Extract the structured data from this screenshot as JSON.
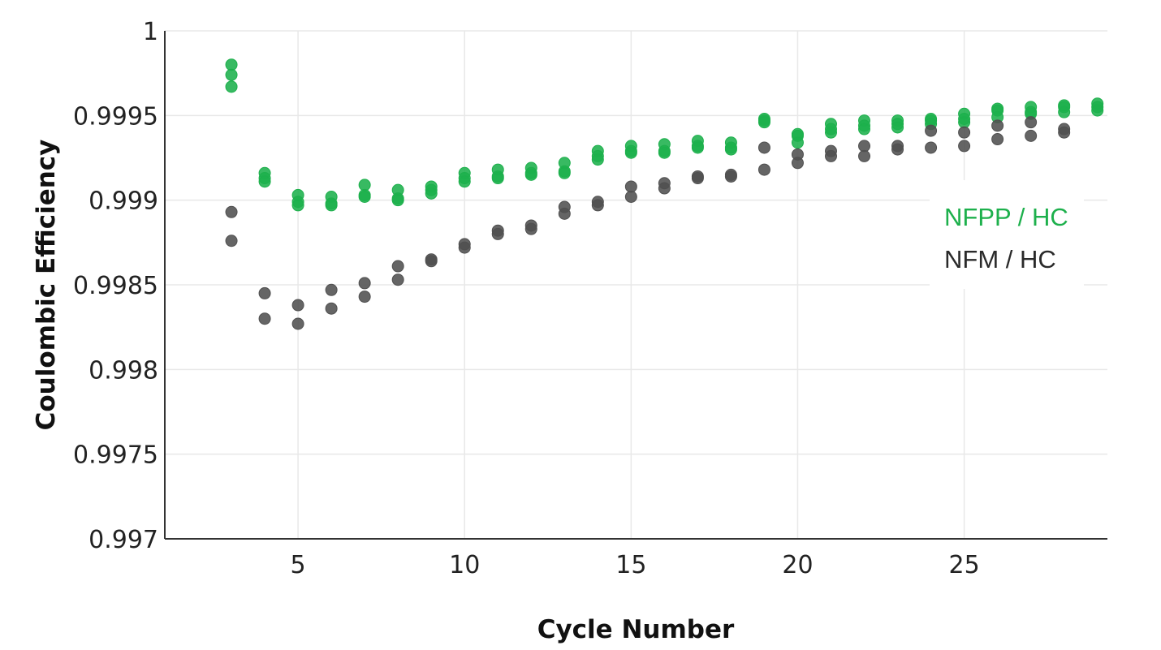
{
  "chart_data": {
    "type": "scatter",
    "title": "",
    "xlabel": "Cycle Number",
    "ylabel": "Coulombic Efficiency",
    "xlim": [
      1,
      29.3
    ],
    "ylim": [
      0.997,
      1
    ],
    "x_ticks": [
      5,
      10,
      15,
      20,
      25
    ],
    "x_tick_labels": [
      "5",
      "10",
      "15",
      "20",
      "25"
    ],
    "y_ticks": [
      0.997,
      0.9975,
      0.998,
      0.9985,
      0.999,
      0.9995,
      1
    ],
    "y_tick_labels": [
      "0.997",
      "0.9975",
      "0.998",
      "0.9985",
      "0.999",
      "0.9995",
      "1"
    ],
    "grid": true,
    "legend_position": "right",
    "series": [
      {
        "name": "NFPP / HC",
        "color": "#1db04c",
        "points": [
          [
            3,
            0.9998
          ],
          [
            3,
            0.99974
          ],
          [
            3,
            0.99967
          ],
          [
            4,
            0.99916
          ],
          [
            4,
            0.99913
          ],
          [
            4,
            0.99911
          ],
          [
            5,
            0.99903
          ],
          [
            5,
            0.99899
          ],
          [
            5,
            0.99897
          ],
          [
            6,
            0.99902
          ],
          [
            6,
            0.99898
          ],
          [
            6,
            0.99897
          ],
          [
            7,
            0.99909
          ],
          [
            7,
            0.99903
          ],
          [
            7,
            0.99902
          ],
          [
            8,
            0.99906
          ],
          [
            8,
            0.99901
          ],
          [
            8,
            0.999
          ],
          [
            9,
            0.99908
          ],
          [
            9,
            0.99906
          ],
          [
            9,
            0.99904
          ],
          [
            10,
            0.99916
          ],
          [
            10,
            0.99913
          ],
          [
            10,
            0.99911
          ],
          [
            11,
            0.99918
          ],
          [
            11,
            0.99914
          ],
          [
            11,
            0.99913
          ],
          [
            12,
            0.99919
          ],
          [
            12,
            0.99916
          ],
          [
            12,
            0.99915
          ],
          [
            13,
            0.99922
          ],
          [
            13,
            0.99917
          ],
          [
            13,
            0.99916
          ],
          [
            14,
            0.99929
          ],
          [
            14,
            0.99926
          ],
          [
            14,
            0.99924
          ],
          [
            15,
            0.99932
          ],
          [
            15,
            0.99929
          ],
          [
            15,
            0.99928
          ],
          [
            16,
            0.99933
          ],
          [
            16,
            0.99929
          ],
          [
            16,
            0.99928
          ],
          [
            17,
            0.99935
          ],
          [
            17,
            0.99932
          ],
          [
            17,
            0.99931
          ],
          [
            18,
            0.99934
          ],
          [
            18,
            0.99931
          ],
          [
            18,
            0.9993
          ],
          [
            19,
            0.99948
          ],
          [
            19,
            0.99947
          ],
          [
            19,
            0.99946
          ],
          [
            20,
            0.99939
          ],
          [
            20,
            0.99938
          ],
          [
            20,
            0.99934
          ],
          [
            21,
            0.99945
          ],
          [
            21,
            0.99942
          ],
          [
            21,
            0.9994
          ],
          [
            22,
            0.99947
          ],
          [
            22,
            0.99944
          ],
          [
            22,
            0.99942
          ],
          [
            23,
            0.99947
          ],
          [
            23,
            0.99945
          ],
          [
            23,
            0.99943
          ],
          [
            24,
            0.99948
          ],
          [
            24,
            0.99947
          ],
          [
            24,
            0.99945
          ],
          [
            25,
            0.99951
          ],
          [
            25,
            0.99948
          ],
          [
            25,
            0.99946
          ],
          [
            26,
            0.99954
          ],
          [
            26,
            0.99953
          ],
          [
            26,
            0.99949
          ],
          [
            27,
            0.99955
          ],
          [
            27,
            0.99952
          ],
          [
            27,
            0.99951
          ],
          [
            28,
            0.99956
          ],
          [
            28,
            0.99955
          ],
          [
            28,
            0.99952
          ],
          [
            29,
            0.99957
          ],
          [
            29,
            0.99955
          ],
          [
            29,
            0.99953
          ]
        ]
      },
      {
        "name": "NFM / HC",
        "color": "#505050",
        "points": [
          [
            3,
            0.99893
          ],
          [
            3,
            0.99876
          ],
          [
            4,
            0.99845
          ],
          [
            4,
            0.9983
          ],
          [
            5,
            0.99838
          ],
          [
            5,
            0.99827
          ],
          [
            6,
            0.99847
          ],
          [
            6,
            0.99836
          ],
          [
            7,
            0.99851
          ],
          [
            7,
            0.99843
          ],
          [
            8,
            0.99861
          ],
          [
            8,
            0.99853
          ],
          [
            9,
            0.99865
          ],
          [
            9,
            0.99864
          ],
          [
            10,
            0.99874
          ],
          [
            10,
            0.99872
          ],
          [
            11,
            0.99882
          ],
          [
            11,
            0.9988
          ],
          [
            12,
            0.99885
          ],
          [
            12,
            0.99883
          ],
          [
            13,
            0.99896
          ],
          [
            13,
            0.99892
          ],
          [
            14,
            0.99899
          ],
          [
            14,
            0.99897
          ],
          [
            15,
            0.99908
          ],
          [
            15,
            0.99902
          ],
          [
            16,
            0.9991
          ],
          [
            16,
            0.99907
          ],
          [
            17,
            0.99914
          ],
          [
            17,
            0.99913
          ],
          [
            18,
            0.99915
          ],
          [
            18,
            0.99914
          ],
          [
            19,
            0.99931
          ],
          [
            19,
            0.99918
          ],
          [
            20,
            0.99927
          ],
          [
            20,
            0.99922
          ],
          [
            21,
            0.99929
          ],
          [
            21,
            0.99926
          ],
          [
            22,
            0.99932
          ],
          [
            22,
            0.99926
          ],
          [
            23,
            0.99932
          ],
          [
            23,
            0.9993
          ],
          [
            24,
            0.99941
          ],
          [
            24,
            0.99931
          ],
          [
            25,
            0.9994
          ],
          [
            25,
            0.99932
          ],
          [
            26,
            0.99944
          ],
          [
            26,
            0.99936
          ],
          [
            27,
            0.99946
          ],
          [
            27,
            0.99938
          ],
          [
            28,
            0.99942
          ],
          [
            28,
            0.9994
          ]
        ]
      }
    ]
  }
}
